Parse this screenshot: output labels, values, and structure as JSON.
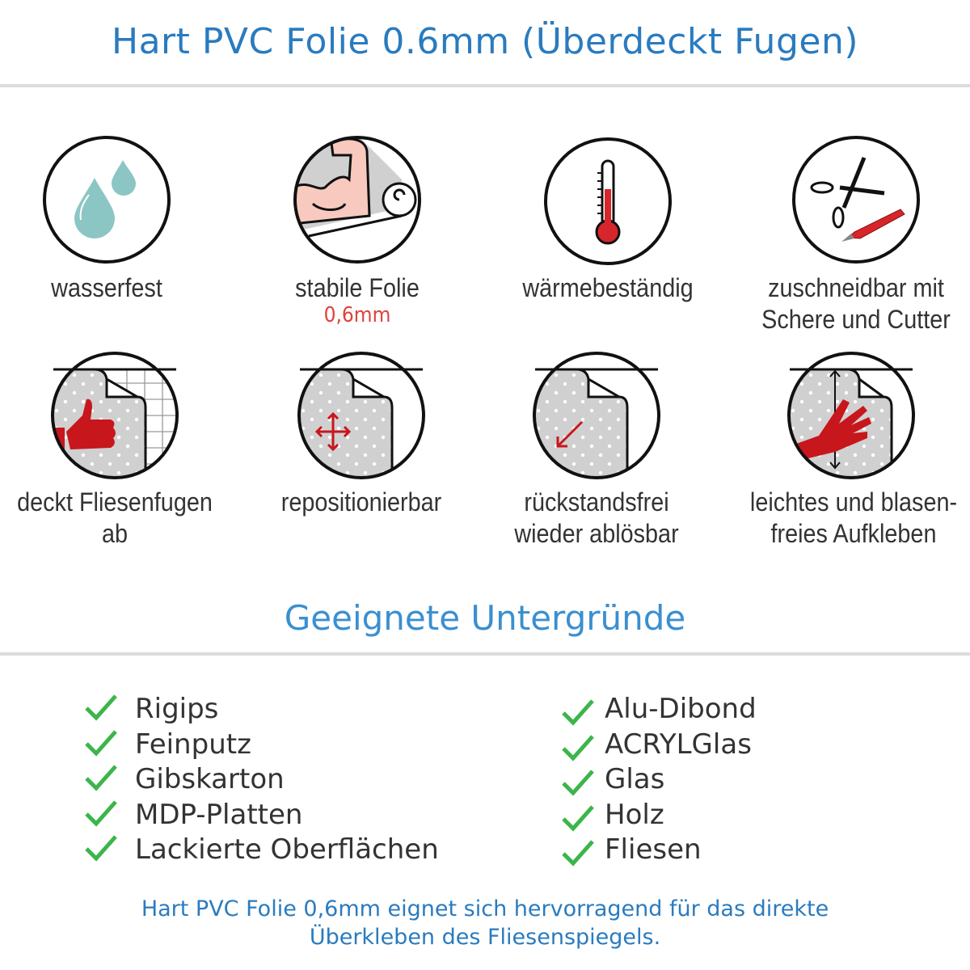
{
  "title": "Hart PVC Folie 0.6mm (Überdeckt Fugen)",
  "features": [
    {
      "label": "wasserfest",
      "icon": "water-drops-icon"
    },
    {
      "label": "stabile Folie",
      "sub": "0,6mm",
      "icon": "muscle-arm-icon"
    },
    {
      "label": "wärmebeständig",
      "icon": "thermometer-icon"
    },
    {
      "label": "zuschneidbar mit",
      "label2": "Schere und Cutter",
      "icon": "scissors-cutter-icon"
    },
    {
      "label": "deckt Fliesenfugen ab",
      "icon": "thumbs-up-sheet-icon"
    },
    {
      "label": "repositionierbar",
      "icon": "move-arrows-sheet-icon"
    },
    {
      "label": "rückstandsfrei",
      "label2": "wieder ablösbar",
      "icon": "peel-arrow-sheet-icon"
    },
    {
      "label": "leichtes und blasen-",
      "label2": "freies Aufkleben",
      "icon": "hand-smooth-sheet-icon"
    }
  ],
  "section_title": "Geeignete Untergründe",
  "surfaces_left": [
    "Rigips",
    "Feinputz",
    "Gibskarton",
    "MDP-Platten",
    "Lackierte Oberflächen"
  ],
  "surfaces_right": [
    "Alu-Dibond",
    "ACRYLGlas",
    "Glas",
    "Holz",
    "Fliesen"
  ],
  "footer": {
    "line1": "Hart PVC Folie 0,6mm eignet sich hervorragend für das direkte",
    "line2": "Überkleben des Fliesenspiegels."
  },
  "colors": {
    "title": "#2a7bbf",
    "check": "#3cb54a",
    "accent_red": "#c8161d",
    "drop": "#8cc6c4",
    "sheet": "#d0d0d0"
  }
}
